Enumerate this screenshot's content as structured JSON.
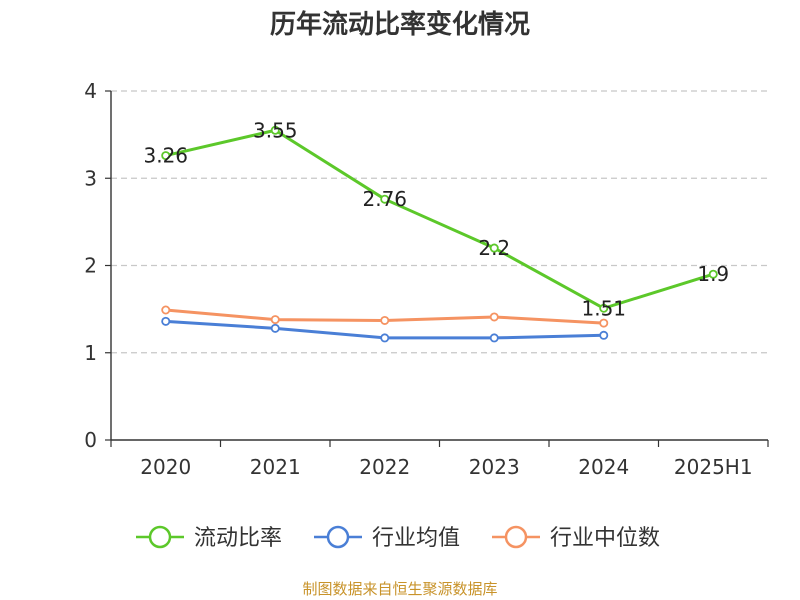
{
  "chart_data": {
    "type": "line",
    "title": "历年流动比率变化情况",
    "categories": [
      "2020",
      "2021",
      "2022",
      "2023",
      "2024",
      "2025H1"
    ],
    "ylim": [
      0,
      4
    ],
    "yticks": [
      "0",
      "1",
      "2",
      "3",
      "4"
    ],
    "grid": true,
    "legend_position": "bottom",
    "series": [
      {
        "name": "流动比率",
        "color": "#5cc82a",
        "values": [
          3.26,
          3.55,
          2.76,
          2.2,
          1.51,
          1.9
        ],
        "labels": [
          "3.26",
          "3.55",
          "2.76",
          "2.2",
          "1.51",
          "1.9"
        ],
        "show_labels": true
      },
      {
        "name": "行业均值",
        "color": "#4a7fd6",
        "values": [
          1.36,
          1.28,
          1.17,
          1.17,
          1.2,
          null
        ],
        "show_labels": false
      },
      {
        "name": "行业中位数",
        "color": "#f59362",
        "values": [
          1.49,
          1.38,
          1.37,
          1.41,
          1.34,
          null
        ],
        "show_labels": false
      }
    ]
  },
  "footer": {
    "source": "制图数据来自恒生聚源数据库"
  }
}
